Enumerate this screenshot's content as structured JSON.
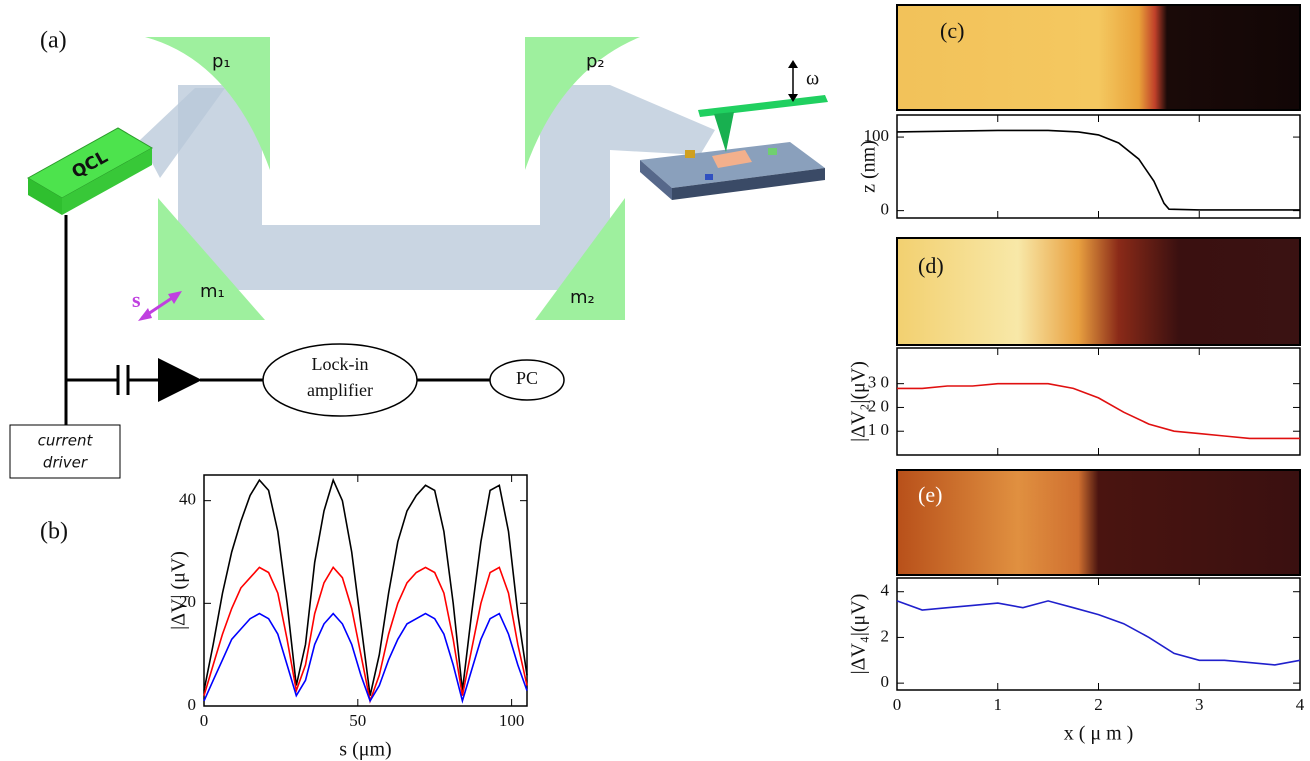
{
  "diagram": {
    "panel_a": "(a)",
    "panel_b": "(b)",
    "p1": "p₁",
    "p2": "p₂",
    "m1": "m₁",
    "m2": "m₂",
    "qcl": "QCL",
    "omega": "ω",
    "s": "s",
    "lockin": [
      "Lock-in",
      "amplifier"
    ],
    "pc": "PC",
    "driver": [
      "current",
      "driver"
    ]
  },
  "chart_data": [
    {
      "type": "line",
      "xlabel": "s (μm)",
      "ylabel": "|ΔV| (μV)",
      "xlim": [
        0,
        105
      ],
      "ylim": [
        0,
        45
      ],
      "xticks": [
        0,
        50,
        100
      ],
      "yticks": [
        0,
        20,
        40
      ],
      "x": [
        0,
        3,
        6,
        9,
        12,
        15,
        18,
        21,
        24,
        27,
        30,
        33,
        36,
        39,
        42,
        45,
        48,
        51,
        54,
        57,
        60,
        63,
        66,
        69,
        72,
        75,
        78,
        81,
        84,
        87,
        90,
        93,
        96,
        99,
        102,
        105
      ],
      "series": [
        {
          "color": "#000000",
          "values": [
            3,
            12,
            22,
            30,
            36,
            41,
            44,
            42,
            34,
            20,
            4,
            12,
            28,
            38,
            44,
            40,
            30,
            16,
            2,
            10,
            22,
            32,
            38,
            41,
            43,
            42,
            34,
            20,
            3,
            18,
            32,
            42,
            43,
            34,
            18,
            6
          ]
        },
        {
          "color": "#ff0000",
          "values": [
            2,
            8,
            14,
            19,
            23,
            25,
            27,
            26,
            22,
            13,
            3,
            8,
            18,
            24,
            27,
            25,
            19,
            10,
            1,
            6,
            14,
            20,
            24,
            26,
            27,
            26,
            22,
            13,
            2,
            11,
            20,
            26,
            27,
            22,
            12,
            4
          ]
        },
        {
          "color": "#0000ff",
          "values": [
            1,
            5,
            9,
            13,
            15,
            17,
            18,
            17,
            14,
            8,
            2,
            5,
            12,
            16,
            18,
            16,
            12,
            6,
            1,
            4,
            9,
            13,
            16,
            17,
            18,
            17,
            14,
            8,
            1,
            7,
            13,
            17,
            18,
            14,
            8,
            3
          ]
        }
      ]
    },
    {
      "type": "line",
      "panel": "(c)",
      "ylabel": "z (nm)",
      "xlim": [
        0,
        4
      ],
      "ylim": [
        -10,
        130
      ],
      "xticks": [
        0,
        1,
        2,
        3,
        4
      ],
      "xtick_labels": false,
      "yticks": [
        0,
        100
      ],
      "x": [
        0,
        0.5,
        1,
        1.5,
        1.8,
        2.0,
        2.2,
        2.4,
        2.55,
        2.65,
        2.7,
        3,
        3.5,
        4
      ],
      "values": [
        107,
        108,
        109,
        109,
        107,
        103,
        92,
        70,
        40,
        10,
        2,
        1,
        1,
        1
      ],
      "color": "#000000"
    },
    {
      "type": "line",
      "panel": "(d)",
      "ylabel": "|ΔV₂|(μV)",
      "xlim": [
        0,
        4
      ],
      "ylim": [
        0,
        45
      ],
      "xticks": [
        0,
        1,
        2,
        3,
        4
      ],
      "xtick_labels": false,
      "yticks": [
        {
          "value": 10,
          "label": "1 0"
        },
        {
          "value": 20,
          "label": "2 0"
        },
        {
          "value": 30,
          "label": "3 0"
        }
      ],
      "x": [
        0,
        0.25,
        0.5,
        0.75,
        1,
        1.25,
        1.5,
        1.75,
        2,
        2.25,
        2.5,
        2.75,
        3,
        3.25,
        3.5,
        3.75,
        4
      ],
      "values": [
        28,
        28,
        29,
        29,
        30,
        30,
        30,
        28,
        24,
        18,
        13,
        10,
        9,
        8,
        7,
        7,
        7
      ],
      "color": "#e01010"
    },
    {
      "type": "line",
      "panel": "(e)",
      "ylabel": "|ΔV₄|(μV)",
      "xlabel": "x ( μ m )",
      "xlim": [
        0,
        4
      ],
      "ylim": [
        -0.3,
        4.6
      ],
      "xticks": [
        0,
        1,
        2,
        3,
        4
      ],
      "yticks": [
        0,
        2,
        4
      ],
      "x": [
        0,
        0.25,
        0.5,
        0.75,
        1,
        1.25,
        1.5,
        1.75,
        2,
        2.25,
        2.5,
        2.75,
        3,
        3.25,
        3.5,
        3.75,
        4
      ],
      "values": [
        3.6,
        3.2,
        3.3,
        3.4,
        3.5,
        3.3,
        3.6,
        3.3,
        3.0,
        2.6,
        2.0,
        1.3,
        1.0,
        1.0,
        0.9,
        0.8,
        1.0
      ],
      "color": "#2020cc"
    }
  ]
}
